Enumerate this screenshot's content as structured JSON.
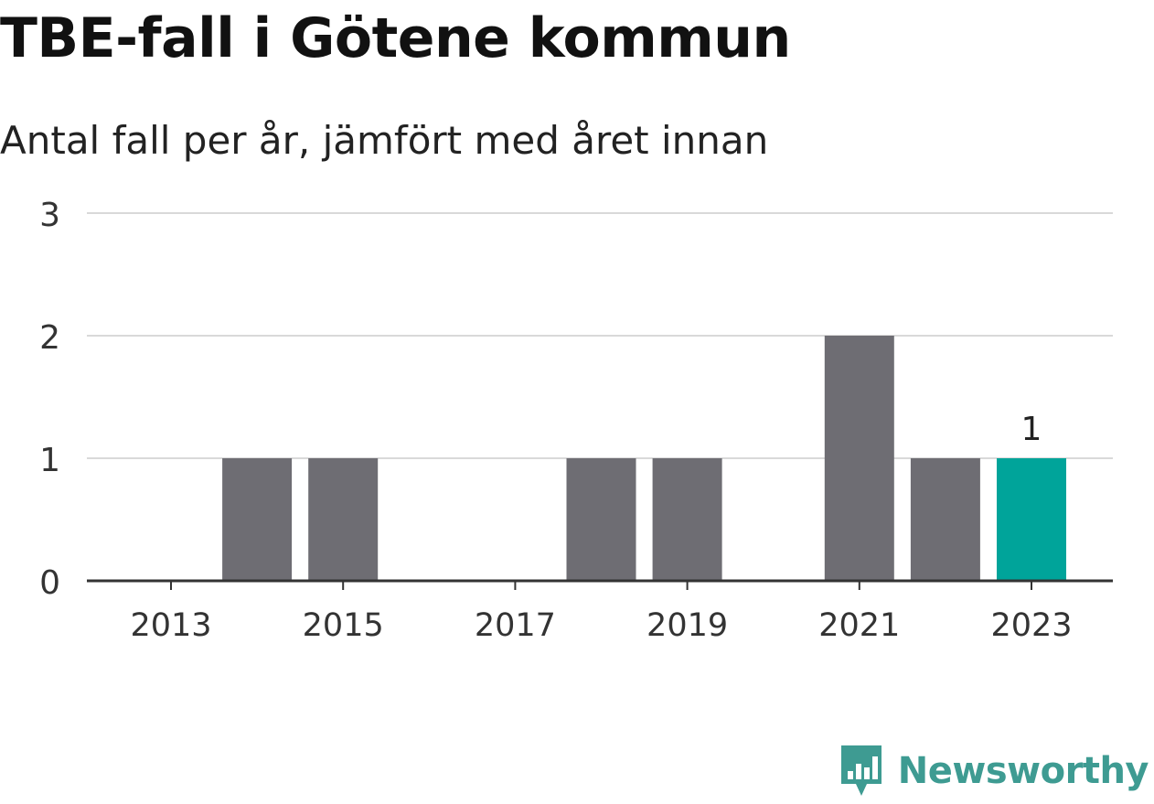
{
  "title": "TBE-fall i Götene kommun",
  "subtitle": "Antal fall per år, jämfört med året innan",
  "brand": {
    "name": "Newsworthy",
    "icon": "newsworthy-logo-icon"
  },
  "colors": {
    "bar": "#6e6d73",
    "highlight": "#00a49a",
    "grid": "#d9d9d9",
    "axis": "#333333",
    "brand": "#3e9b92"
  },
  "chart_data": {
    "type": "bar",
    "categories": [
      "2013",
      "2014",
      "2015",
      "2016",
      "2017",
      "2018",
      "2019",
      "2020",
      "2021",
      "2022",
      "2023"
    ],
    "values": [
      0,
      1,
      1,
      0,
      0,
      1,
      1,
      0,
      2,
      1,
      1
    ],
    "x_tick_labels": [
      "2013",
      "2015",
      "2017",
      "2019",
      "2021",
      "2023"
    ],
    "y_ticks": [
      0,
      1,
      2,
      3
    ],
    "ylim": [
      0,
      3
    ],
    "grid": true,
    "highlight_category": "2023",
    "data_labels": [
      {
        "category": "2023",
        "text": "1"
      }
    ],
    "xlabel": "",
    "ylabel": ""
  }
}
